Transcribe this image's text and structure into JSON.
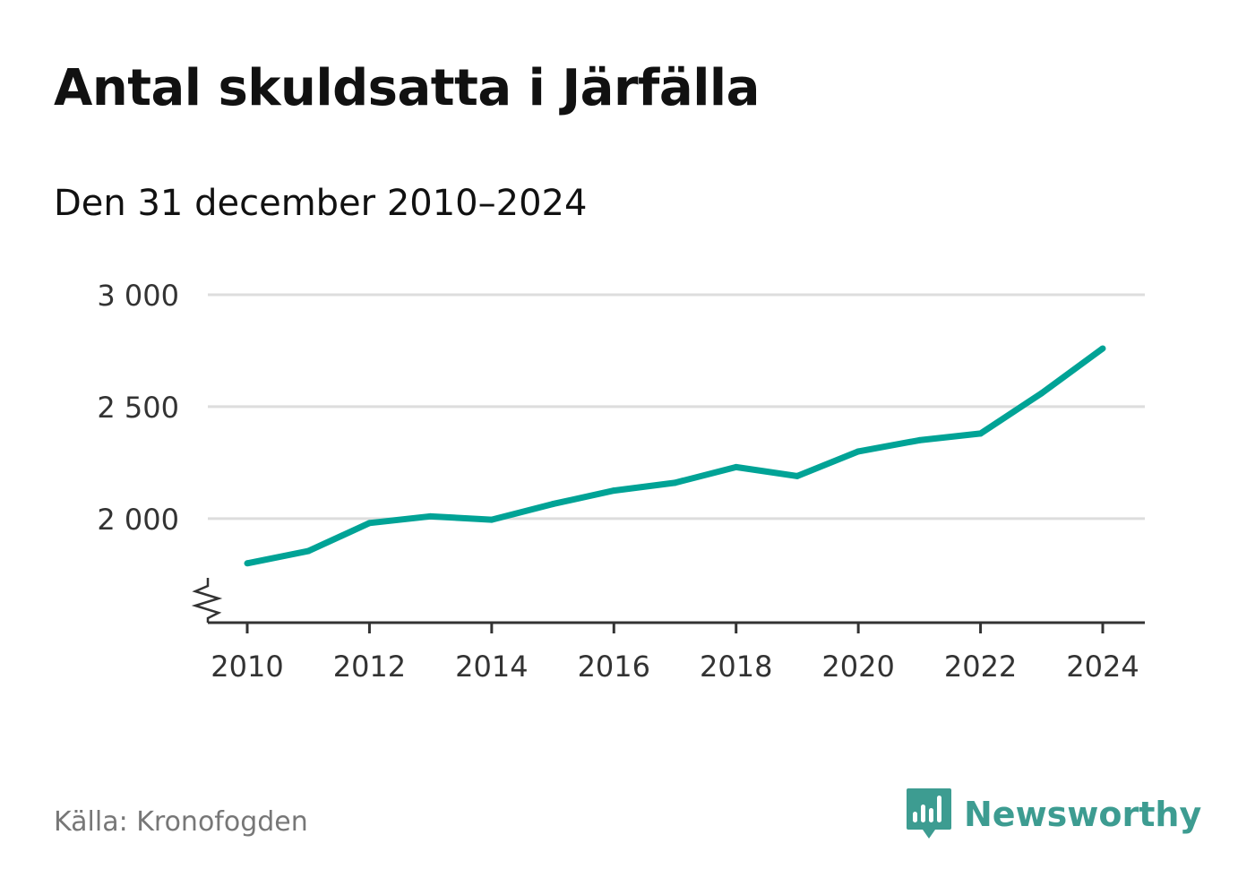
{
  "title": "Antal skuldsatta i Järfälla",
  "subtitle": "Den 31 december 2010–2024",
  "source": "Källa: Kronofogden",
  "brand": {
    "name": "Newsworthy",
    "icon": "chart-speech-bubble-icon"
  },
  "colors": {
    "line": "#00a396",
    "grid": "#dddddd",
    "axis": "#333333",
    "brand": "#3d9c91"
  },
  "chart_data": {
    "type": "line",
    "title": "Antal skuldsatta i Järfälla",
    "xlabel": "",
    "ylabel": "",
    "x": [
      2010,
      2011,
      2012,
      2013,
      2014,
      2015,
      2016,
      2017,
      2018,
      2019,
      2020,
      2021,
      2022,
      2023,
      2024
    ],
    "series": [
      {
        "name": "Antal skuldsatta",
        "values": [
          1800,
          1855,
          1980,
          2010,
          1995,
          2065,
          2125,
          2160,
          2230,
          2190,
          2300,
          2350,
          2380,
          2560,
          2760
        ]
      }
    ],
    "ylim": [
      1535,
      3000
    ],
    "xlim": [
      2010,
      2024
    ],
    "yticks": [
      2000,
      2500,
      3000
    ],
    "ytick_labels": [
      "2 000",
      "2 500",
      "3 000"
    ],
    "xticks": [
      2010,
      2012,
      2014,
      2016,
      2018,
      2020,
      2022,
      2024
    ],
    "xtick_labels": [
      "2010",
      "2012",
      "2014",
      "2016",
      "2018",
      "2020",
      "2022",
      "2024"
    ],
    "grid": true,
    "y_axis_break": true
  }
}
